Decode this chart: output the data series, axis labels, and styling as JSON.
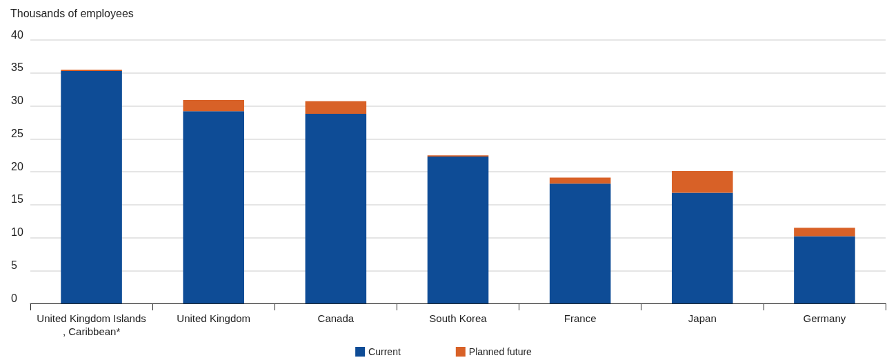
{
  "chart_data": {
    "type": "bar",
    "ylabel": "Thousands of employees",
    "categories": [
      "United Kingdom Islands, Caribbean*",
      "United Kingdom",
      "Canada",
      "South Korea",
      "France",
      "Japan",
      "Germany"
    ],
    "series": [
      {
        "name": "Current",
        "color": "#0e4c96",
        "values": [
          35.3,
          29.2,
          28.8,
          22.3,
          18.2,
          16.8,
          10.2
        ]
      },
      {
        "name": "Planned future",
        "color": "#d86127",
        "values": [
          0.2,
          1.7,
          1.9,
          0.2,
          0.9,
          3.3,
          1.3
        ]
      }
    ],
    "stacked": true,
    "ylim": [
      0,
      40
    ],
    "yticks": [
      0,
      5,
      10,
      15,
      20,
      25,
      30,
      35,
      40
    ],
    "grid": "y",
    "legend": "bottom"
  }
}
